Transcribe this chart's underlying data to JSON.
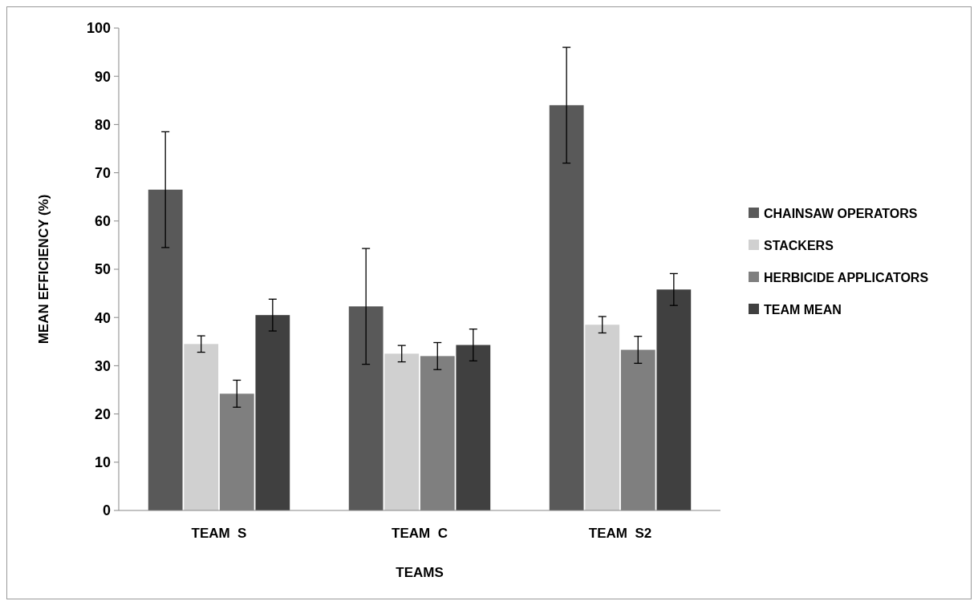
{
  "chart_data": {
    "type": "bar",
    "xlabel": "TEAMS",
    "ylabel": "MEAN EFFICIENCY (%)",
    "categories": [
      "TEAM  S",
      "TEAM  C",
      "TEAM  S2"
    ],
    "series": [
      {
        "name": "CHAINSAW OPERATORS",
        "color": "#595959",
        "values": [
          66.5,
          42.3,
          84
        ],
        "errors": [
          12,
          12,
          12
        ]
      },
      {
        "name": "STACKERS",
        "color": "#d0d0d0",
        "values": [
          34.5,
          32.5,
          38.5
        ],
        "errors": [
          1.7,
          1.7,
          1.7
        ]
      },
      {
        "name": "HERBICIDE APPLICATORS",
        "color": "#7f7f7f",
        "values": [
          24.2,
          32,
          33.3
        ],
        "errors": [
          2.8,
          2.8,
          2.8
        ]
      },
      {
        "name": "TEAM MEAN",
        "color": "#404040",
        "values": [
          40.5,
          34.3,
          45.8
        ],
        "errors": [
          3.3,
          3.3,
          3.3
        ]
      }
    ],
    "ylim": [
      0,
      100
    ],
    "yticks": [
      0,
      10,
      20,
      30,
      40,
      50,
      60,
      70,
      80,
      90,
      100
    ],
    "grid": false,
    "legend": "right"
  }
}
